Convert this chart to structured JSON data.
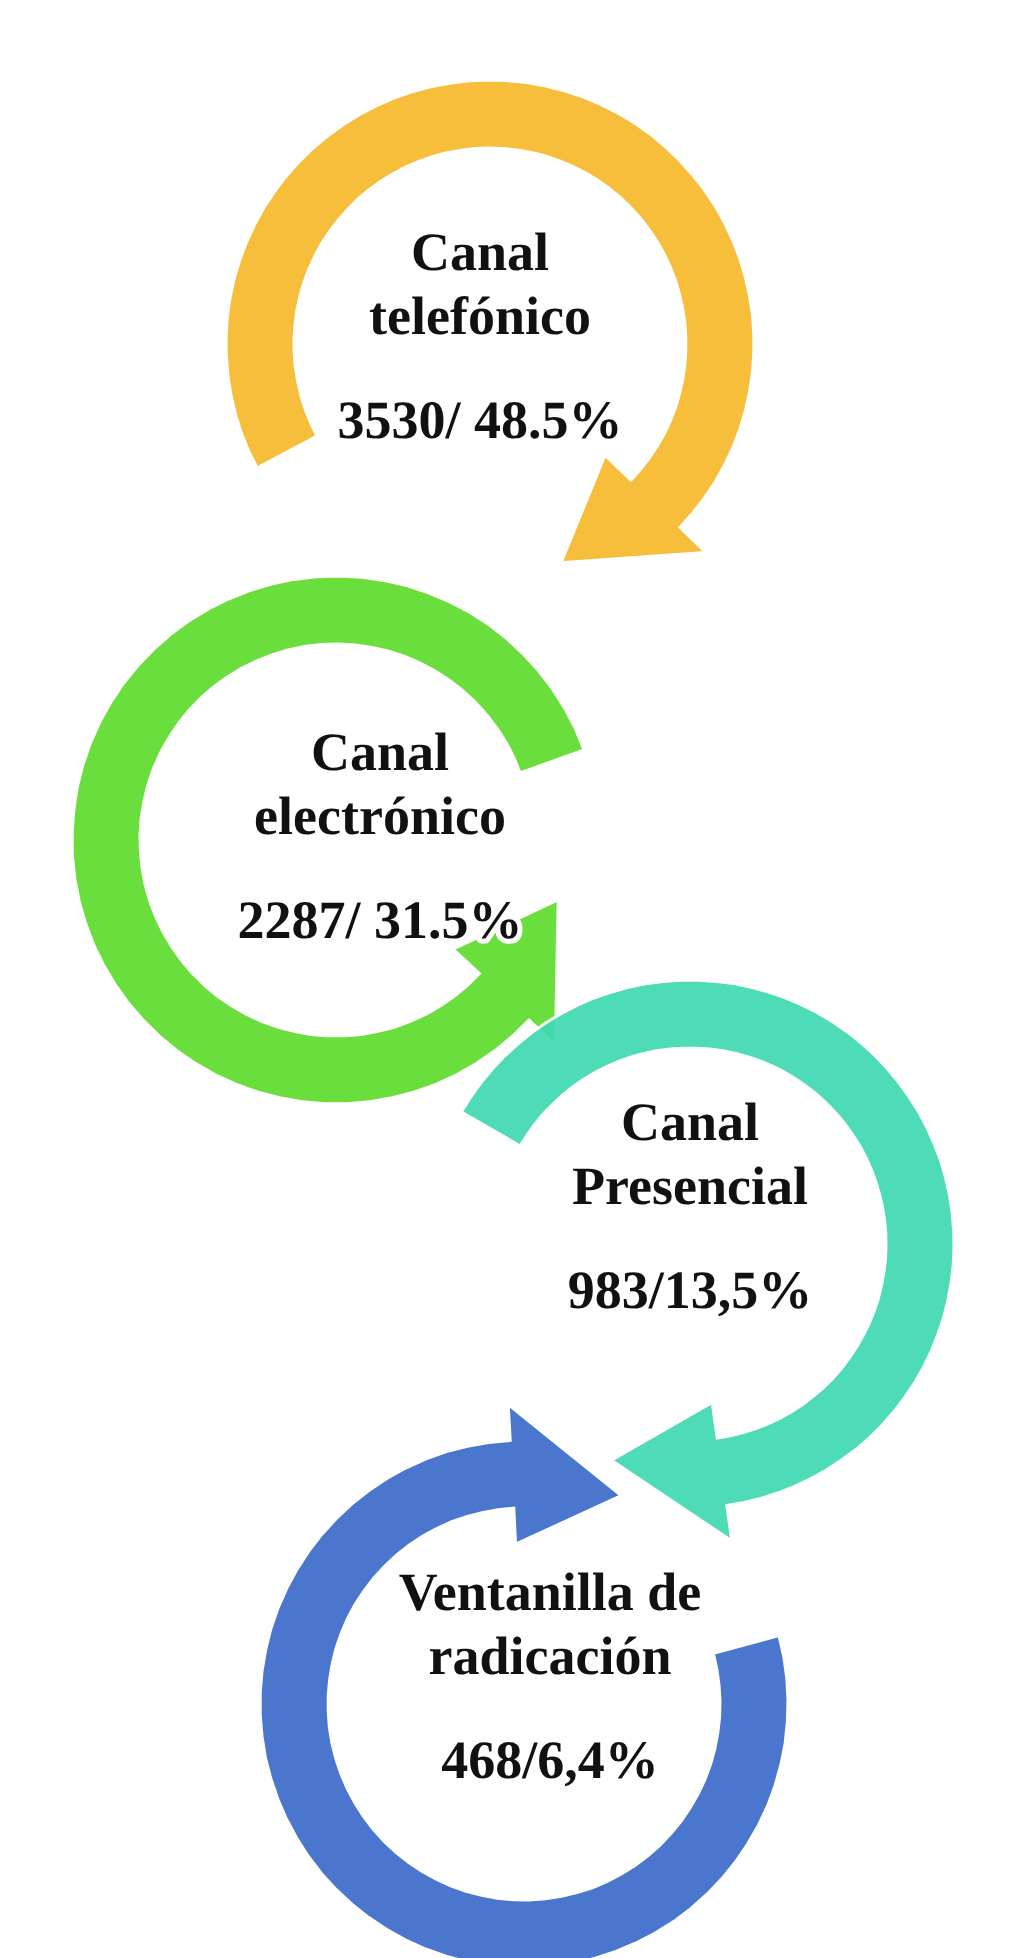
{
  "chart_data": {
    "type": "other",
    "categories": [
      "Canal telefónico",
      "Canal electrónico",
      "Canal Presencial",
      "Ventanilla de radicación"
    ],
    "values": [
      3530,
      2287,
      983,
      468
    ],
    "value_labels": [
      "3530/ 48.5%",
      "2287/ 31.5%",
      "983/13,5%",
      "468/6,4%"
    ],
    "colors": [
      "#f7b92c",
      "#5edc2c",
      "#3fd9b2",
      "#3b6bc9"
    ]
  }
}
